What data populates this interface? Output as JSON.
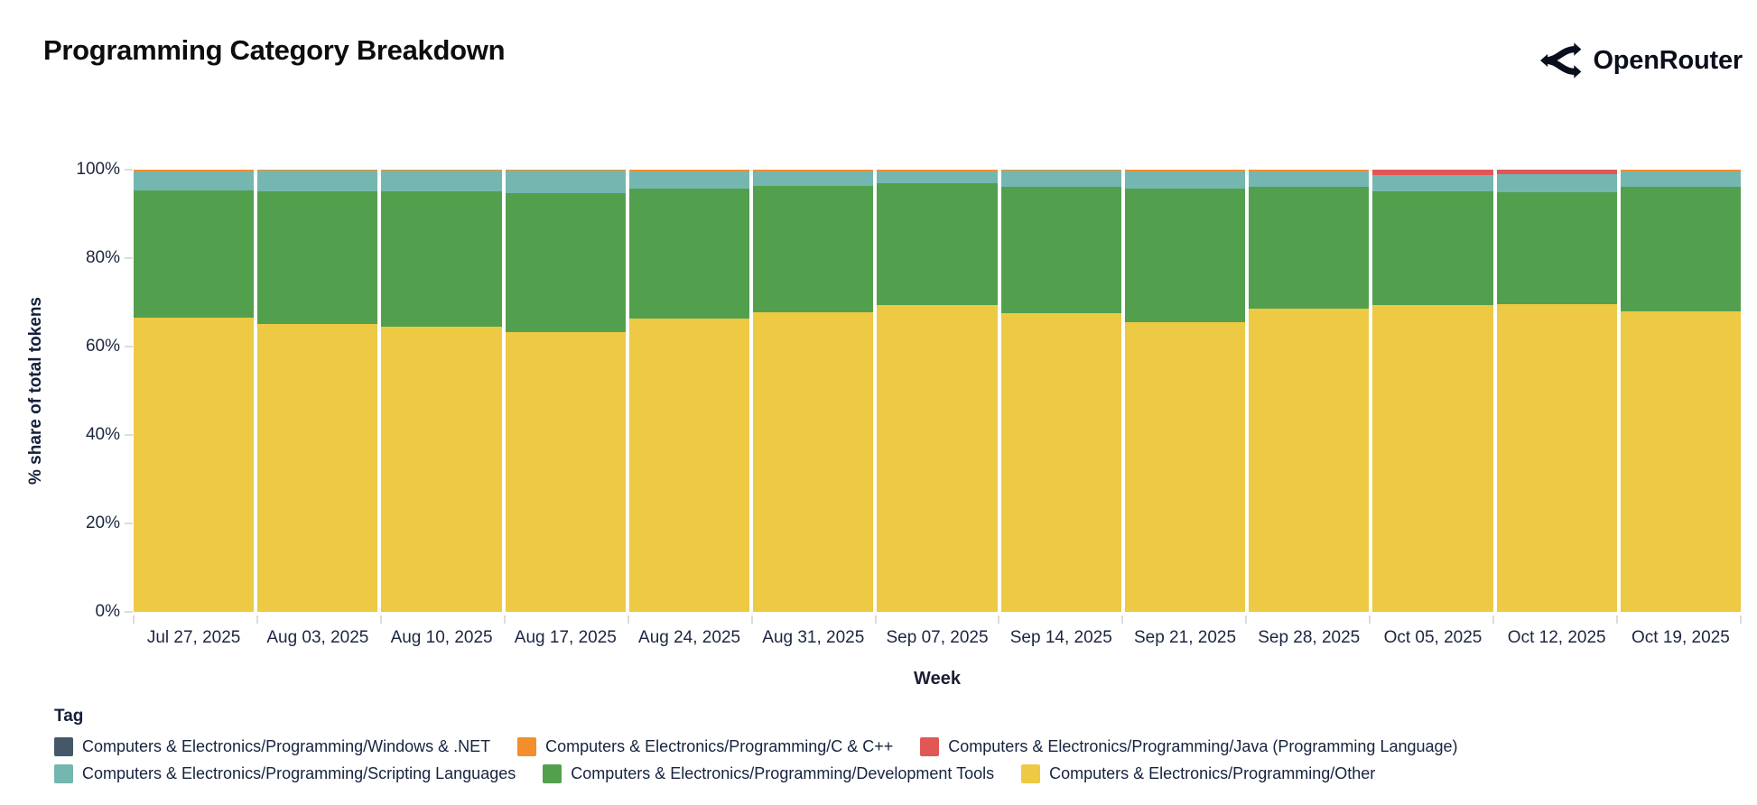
{
  "header": {
    "title": "Programming Category Breakdown",
    "brand": "OpenRouter"
  },
  "chart_data": {
    "type": "bar",
    "variant": "stacked-100-percent",
    "title": "Programming Category Breakdown",
    "xlabel": "Week",
    "ylabel": "% share of total tokens",
    "ylim": [
      0,
      100
    ],
    "ytick_values": [
      0,
      20,
      40,
      60,
      80,
      100
    ],
    "ytick_labels": [
      "0%",
      "20%",
      "40%",
      "60%",
      "80%",
      "100%"
    ],
    "grid": "off",
    "legend_title": "Tag",
    "legend_position": "bottom",
    "categories": [
      "Jul 27, 2025",
      "Aug 03, 2025",
      "Aug 10, 2025",
      "Aug 17, 2025",
      "Aug 24, 2025",
      "Aug 31, 2025",
      "Sep 07, 2025",
      "Sep 14, 2025",
      "Sep 21, 2025",
      "Sep 28, 2025",
      "Oct 05, 2025",
      "Oct 12, 2025",
      "Oct 19, 2025"
    ],
    "series": [
      {
        "name": "Computers & Electronics/Programming/Windows & .NET",
        "color": "#46576a",
        "patterned": true,
        "values": [
          0,
          0,
          0,
          0,
          0,
          0,
          0,
          0,
          0,
          0,
          0,
          0,
          0
        ]
      },
      {
        "name": "Computers & Electronics/Programming/C & C++",
        "color": "#f28e2b",
        "patterned": false,
        "values": [
          0.3,
          0.3,
          0.3,
          0.3,
          0.3,
          0.3,
          0.3,
          0.3,
          0.3,
          0.3,
          0,
          0,
          0.3
        ]
      },
      {
        "name": "Computers & Electronics/Programming/Java (Programming Language)",
        "color": "#e05756",
        "patterned": false,
        "values": [
          0,
          0,
          0,
          0,
          0,
          0,
          0,
          0,
          0,
          0,
          1.2,
          1.0,
          0
        ]
      },
      {
        "name": "Computers & Electronics/Programming/Scripting Languages",
        "color": "#74b7b1",
        "patterned": false,
        "values": [
          4.4,
          4.5,
          4.5,
          5.0,
          4.0,
          3.3,
          2.7,
          3.5,
          4.0,
          3.5,
          3.6,
          4.1,
          3.5
        ]
      },
      {
        "name": "Computers & Electronics/Programming/Development Tools",
        "color": "#52a04e",
        "patterned": false,
        "values": [
          28.8,
          30.0,
          30.7,
          31.5,
          29.4,
          28.6,
          27.7,
          28.7,
          30.2,
          27.7,
          25.9,
          25.4,
          28.2
        ]
      },
      {
        "name": "Computers & Electronics/Programming/Other",
        "color": "#edc944",
        "patterned": false,
        "values": [
          66.5,
          65.2,
          64.5,
          63.2,
          66.3,
          67.8,
          69.3,
          67.5,
          65.5,
          68.5,
          69.3,
          69.5,
          68.0
        ]
      }
    ],
    "stack_order_bottom_to_top": [
      5,
      4,
      3,
      0,
      1,
      2
    ],
    "legend_rows": [
      [
        0,
        1,
        2
      ],
      [
        3,
        4,
        5
      ]
    ]
  }
}
